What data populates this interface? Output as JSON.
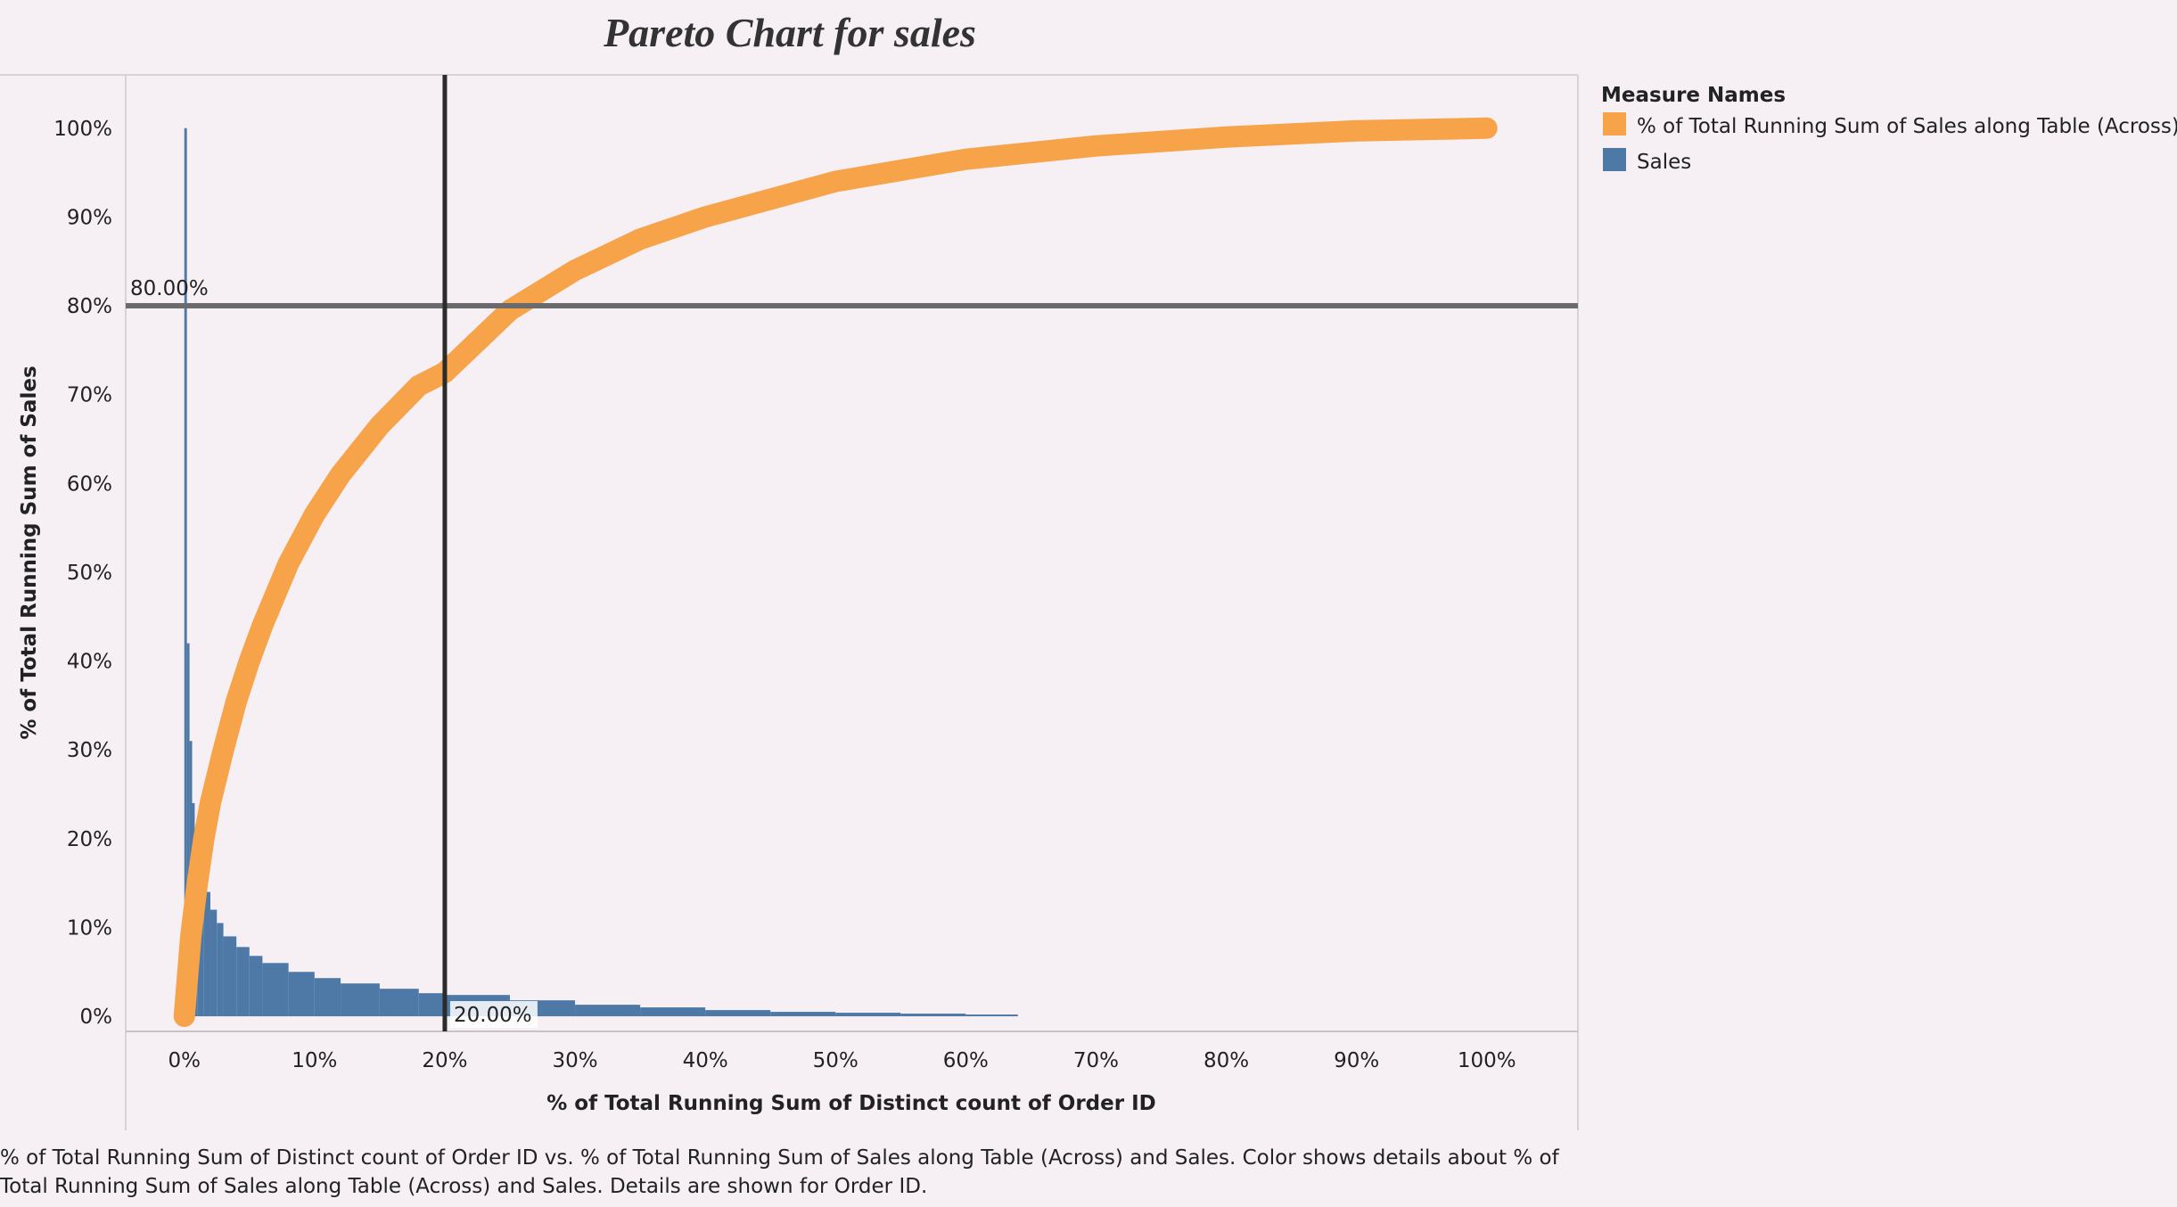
{
  "chart_data": {
    "type": "pareto",
    "title": "Pareto Chart for sales",
    "xlabel": "% of Total Running Sum of Distinct count of Order ID",
    "ylabel": "% of Total Running Sum of Sales",
    "xlim": [
      -0.045,
      1.07
    ],
    "ylim": [
      -0.017,
      1.06
    ],
    "x_ticks": [
      "0%",
      "10%",
      "20%",
      "30%",
      "40%",
      "50%",
      "60%",
      "70%",
      "80%",
      "90%",
      "100%"
    ],
    "y_ticks": [
      "0%",
      "10%",
      "20%",
      "30%",
      "40%",
      "50%",
      "60%",
      "70%",
      "80%",
      "90%",
      "100%"
    ],
    "reference_lines": {
      "horizontal": {
        "value": 0.8,
        "label": "80.00%"
      },
      "vertical": {
        "value": 0.2,
        "label": "20.00%"
      }
    },
    "grid": false,
    "legend_position": "right",
    "series": [
      {
        "name": "% of Total Running Sum of Sales along Table (Across)",
        "mark": "line",
        "color": "#f7a349",
        "x": [
          0.0,
          0.005,
          0.01,
          0.015,
          0.02,
          0.03,
          0.04,
          0.05,
          0.06,
          0.08,
          0.1,
          0.12,
          0.15,
          0.18,
          0.2,
          0.25,
          0.3,
          0.35,
          0.4,
          0.5,
          0.6,
          0.7,
          0.8,
          0.9,
          1.0
        ],
        "y": [
          0.0,
          0.09,
          0.15,
          0.2,
          0.24,
          0.3,
          0.355,
          0.4,
          0.44,
          0.51,
          0.565,
          0.61,
          0.665,
          0.71,
          0.725,
          0.795,
          0.84,
          0.875,
          0.9,
          0.94,
          0.965,
          0.98,
          0.99,
          0.997,
          1.0
        ]
      },
      {
        "name": "Sales",
        "mark": "bar",
        "color": "#4e79a7",
        "x": [
          0.0,
          0.002,
          0.004,
          0.006,
          0.008,
          0.01,
          0.015,
          0.02,
          0.025,
          0.03,
          0.04,
          0.05,
          0.06,
          0.08,
          0.1,
          0.12,
          0.15,
          0.18,
          0.2,
          0.25,
          0.3,
          0.35,
          0.4,
          0.45,
          0.5,
          0.55,
          0.6,
          0.64
        ],
        "y": [
          1.0,
          0.42,
          0.31,
          0.24,
          0.2,
          0.165,
          0.14,
          0.12,
          0.105,
          0.09,
          0.078,
          0.068,
          0.06,
          0.05,
          0.043,
          0.037,
          0.031,
          0.026,
          0.024,
          0.018,
          0.013,
          0.01,
          0.007,
          0.005,
          0.004,
          0.003,
          0.002,
          0.0
        ]
      }
    ]
  },
  "legend": {
    "title": "Measure Names",
    "items": [
      {
        "label": "% of Total Running Sum of Sales along Table (Across)",
        "color": "#f7a349"
      },
      {
        "label": "Sales",
        "color": "#4e79a7"
      }
    ]
  },
  "caption": "% of Total Running Sum of Distinct count of Order ID vs. % of Total Running Sum of Sales along Table (Across) and Sales.  Color shows details about % of Total Running Sum of Sales along Table (Across) and Sales.  Details are shown for Order ID."
}
